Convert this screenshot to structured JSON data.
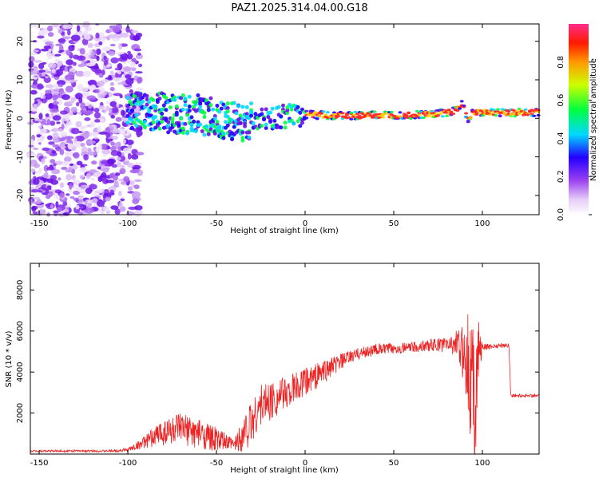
{
  "title": "PAZ1.2025.314.04.00.G18",
  "colorbar": {
    "label": "Normalized spectral amplitude",
    "ticks": [
      "0.0",
      "0.2",
      "0.4",
      "0.6",
      "0.8"
    ]
  },
  "chart_data": [
    {
      "type": "heatmap",
      "xlabel": "Height of straight line (km)",
      "ylabel": "Frequency (Hz)",
      "xlim": [
        -155,
        132
      ],
      "ylim": [
        -25,
        24.5
      ],
      "xticks": [
        -150,
        -100,
        -50,
        0,
        50,
        100
      ],
      "yticks": [
        -20,
        -10,
        0,
        10,
        20
      ],
      "colorbar_range": [
        0,
        1
      ],
      "ridge": {
        "x": [
          -100,
          -90,
          -80,
          -70,
          -60,
          -50,
          -40,
          -30,
          -20,
          -10,
          0,
          10,
          20,
          30,
          40,
          50,
          60,
          70,
          80,
          85,
          88,
          90,
          92,
          95,
          100,
          110,
          120,
          132
        ],
        "freq_hz": [
          1.5,
          2,
          1.5,
          1,
          1,
          0,
          -1,
          -1,
          0,
          0.5,
          1,
          0.8,
          0.7,
          0.7,
          0.8,
          0.8,
          0.8,
          1,
          1.5,
          2,
          4,
          2,
          0,
          1.5,
          1.5,
          1.5,
          1.5,
          1.5
        ]
      }
    },
    {
      "type": "line",
      "xlabel": "Height of straight line (km)",
      "ylabel": "SNR (10 * v/v)",
      "xlim": [
        -155,
        132
      ],
      "ylim": [
        0,
        9300
      ],
      "xticks": [
        -150,
        -100,
        -50,
        0,
        50,
        100
      ],
      "yticks": [
        2000,
        4000,
        6000,
        8000
      ],
      "color": "#ee2222",
      "envelope": {
        "x": [
          -155,
          -110,
          -100,
          -90,
          -80,
          -70,
          -60,
          -50,
          -40,
          -35,
          -30,
          -25,
          -20,
          -10,
          0,
          10,
          20,
          30,
          40,
          50,
          60,
          70,
          80,
          85,
          88,
          90,
          92,
          94,
          96,
          98,
          100,
          110,
          115,
          116,
          120,
          132
        ],
        "mean": [
          150,
          150,
          200,
          600,
          1100,
          1200,
          1000,
          700,
          450,
          1000,
          1600,
          2400,
          2600,
          3000,
          3500,
          4000,
          4500,
          4900,
          5100,
          5150,
          5200,
          5300,
          5350,
          5400,
          5000,
          5000,
          4500,
          3500,
          3000,
          5100,
          5200,
          5300,
          5300,
          2850,
          2850,
          2850
        ],
        "amp": [
          50,
          50,
          100,
          300,
          700,
          800,
          700,
          600,
          300,
          900,
          1100,
          1000,
          1000,
          800,
          700,
          600,
          400,
          300,
          300,
          250,
          250,
          300,
          400,
          600,
          1200,
          1500,
          2500,
          3500,
          4000,
          1500,
          150,
          120,
          100,
          100,
          80,
          80
        ]
      }
    }
  ]
}
